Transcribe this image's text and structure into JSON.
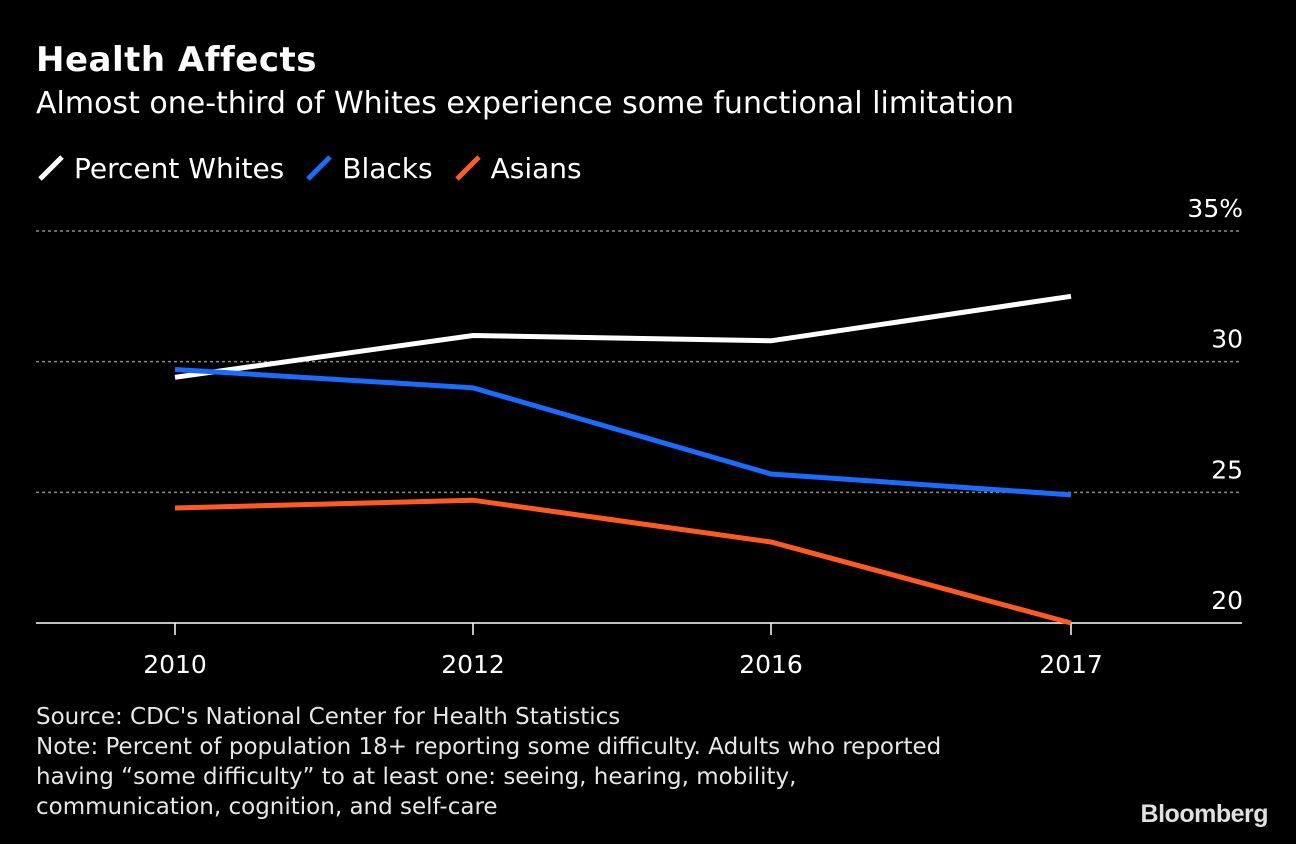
{
  "header": {
    "title": "Health Affects",
    "subtitle": "Almost one-third of Whites experience some functional limitation"
  },
  "legend": [
    {
      "label": "Percent Whites",
      "color": "#ffffff"
    },
    {
      "label": "Blacks",
      "color": "#1a6cff"
    },
    {
      "label": "Asians",
      "color": "#ff5a1f"
    }
  ],
  "chart_data": {
    "type": "line",
    "title": "Health Affects",
    "subtitle": "Almost one-third of Whites experience some functional limitation",
    "categories": [
      "2010",
      "2012",
      "2016",
      "2017"
    ],
    "series": [
      {
        "name": "Percent Whites",
        "color": "#ffffff",
        "values": [
          29.4,
          31.0,
          30.8,
          32.5
        ]
      },
      {
        "name": "Blacks",
        "color": "#1a6cff",
        "values": [
          29.7,
          29.0,
          25.7,
          24.9
        ]
      },
      {
        "name": "Asians",
        "color": "#ff5a1f",
        "values": [
          24.4,
          24.7,
          23.1,
          20.0
        ]
      }
    ],
    "ylim": [
      20,
      35
    ],
    "yticks": [
      20,
      25,
      30,
      35
    ],
    "ytick_labels": [
      "20",
      "25",
      "30",
      "35%"
    ],
    "y_axis_side": "right",
    "grid": "horizontal dotted",
    "legend_position": "top-left"
  },
  "footer": {
    "source": "Source: CDC's National Center for Health Statistics",
    "note_lines": [
      "Note: Percent of population 18+ reporting some difficulty. Adults who reported",
      "having “some difficulty” to at least one: seeing, hearing, mobility,",
      "communication, cognition, and self-care"
    ],
    "brand": "Bloomberg"
  }
}
